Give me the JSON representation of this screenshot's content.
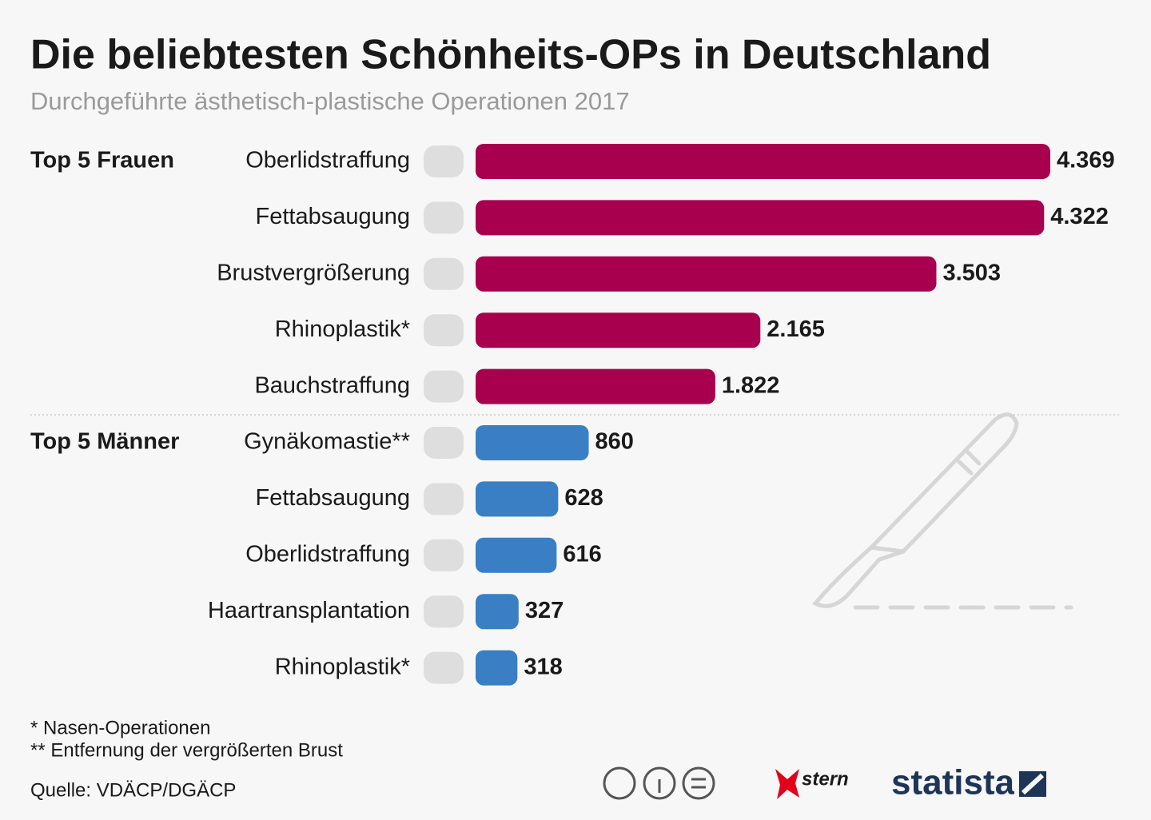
{
  "chart_data": {
    "type": "bar",
    "orientation": "horizontal",
    "title": "Die beliebtesten Schönheits-OPs in Deutschland",
    "subtitle": "Durchgeführte ästhetisch-plastische Operationen 2017",
    "groups": [
      {
        "name": "Top 5 Frauen",
        "color": "#a8004e",
        "categories": [
          "Oberlidstraffung",
          "Fettabsaugung",
          "Brustvergrößerung",
          "Rhinoplastik*",
          "Bauchstraffung"
        ],
        "values": [
          4369,
          4322,
          3503,
          2165,
          1822
        ],
        "value_labels": [
          "4.369",
          "4.322",
          "3.503",
          "2.165",
          "1.822"
        ]
      },
      {
        "name": "Top 5 Männer",
        "color": "#3a7fc4",
        "categories": [
          "Gynäkomastie**",
          "Fettabsaugung",
          "Oberlidstraffung",
          "Haartransplantation",
          "Rhinoplastik*"
        ],
        "values": [
          860,
          628,
          616,
          327,
          318
        ]
      }
    ],
    "footnotes": [
      "*  Nasen-Operationen",
      "** Entfernung der vergrößerten Brust"
    ],
    "source": "Quelle: VDÄCP/DGÄCP",
    "logos": [
      "stern",
      "statista"
    ]
  }
}
